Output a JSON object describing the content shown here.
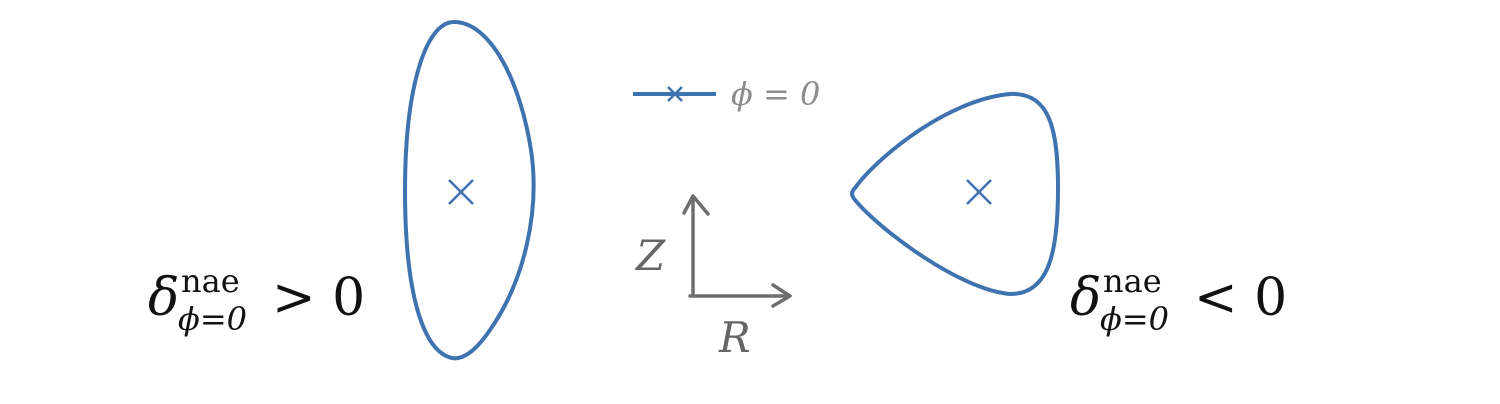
{
  "colors": {
    "curve": "#3f73b0",
    "legend_text": "#8c8c8c",
    "axes": "#6e6e6e",
    "label_text": "#111111"
  },
  "legend": {
    "marker": "×",
    "label": "ϕ = 0"
  },
  "left_label": {
    "symbol": "δ",
    "superscript": "nae",
    "subscript": "ϕ=0",
    "relation": "> 0"
  },
  "right_label": {
    "symbol": "δ",
    "superscript": "nae",
    "subscript": "ϕ=0",
    "relation": "< 0"
  },
  "axes": {
    "vertical_label": "Z",
    "horizontal_label": "R"
  },
  "left_shape": {
    "description_marker": "×"
  },
  "right_shape": {
    "description_marker": "×"
  }
}
